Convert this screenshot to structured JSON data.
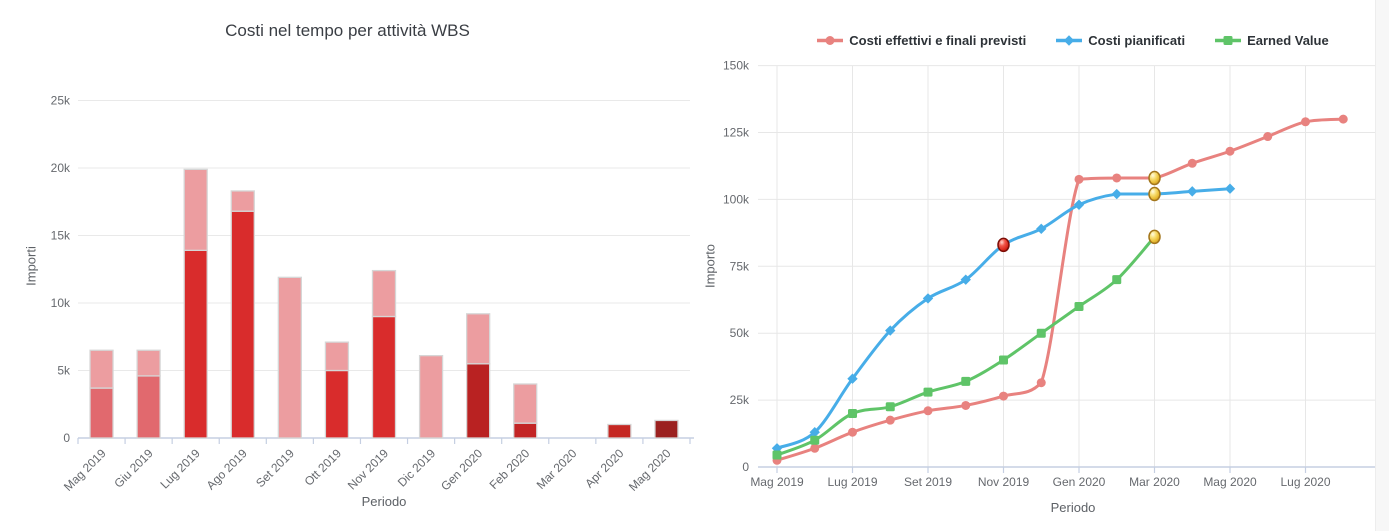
{
  "chart_data": [
    {
      "type": "bar",
      "stacked": true,
      "title": "Costi nel tempo per attività WBS",
      "xlabel": "Periodo",
      "ylabel": "Importi",
      "ylim": [
        0,
        27000
      ],
      "grid": "horizontal",
      "ytick_step": 5000,
      "ytick_labels": [
        "0",
        "5k",
        "10k",
        "15k",
        "20k",
        "25k"
      ],
      "categories": [
        "Mag 2019",
        "Giu 2019",
        "Lug 2019",
        "Ago 2019",
        "Set 2019",
        "Ott 2019",
        "Nov 2019",
        "Dic 2019",
        "Gen 2020",
        "Feb 2020",
        "Mar 2020",
        "Apr 2020",
        "Mag 2020"
      ],
      "bars": [
        {
          "category": "Mag 2019",
          "segments": [
            {
              "value": 3700,
              "color": "#e1696e"
            },
            {
              "value": 2800,
              "color": "#ec9da0"
            }
          ]
        },
        {
          "category": "Giu 2019",
          "segments": [
            {
              "value": 4600,
              "color": "#e1696e"
            },
            {
              "value": 1900,
              "color": "#ec9da0"
            }
          ]
        },
        {
          "category": "Lug 2019",
          "segments": [
            {
              "value": 13900,
              "color": "#d92c2c"
            },
            {
              "value": 6000,
              "color": "#ec9da0"
            }
          ]
        },
        {
          "category": "Ago 2019",
          "segments": [
            {
              "value": 16800,
              "color": "#d92c2c"
            },
            {
              "value": 1500,
              "color": "#ec9da0"
            }
          ]
        },
        {
          "category": "Set 2019",
          "segments": [
            {
              "value": 11900,
              "color": "#ec9da0"
            }
          ]
        },
        {
          "category": "Ott 2019",
          "segments": [
            {
              "value": 5000,
              "color": "#d92c2c"
            },
            {
              "value": 2100,
              "color": "#ec9da0"
            }
          ]
        },
        {
          "category": "Nov 2019",
          "segments": [
            {
              "value": 9000,
              "color": "#d92c2c"
            },
            {
              "value": 3400,
              "color": "#ec9da0"
            }
          ]
        },
        {
          "category": "Dic 2019",
          "segments": [
            {
              "value": 6100,
              "color": "#ec9da0"
            }
          ]
        },
        {
          "category": "Gen 2020",
          "segments": [
            {
              "value": 5500,
              "color": "#b92222"
            },
            {
              "value": 3700,
              "color": "#ec9da0"
            }
          ]
        },
        {
          "category": "Feb 2020",
          "segments": [
            {
              "value": 1100,
              "color": "#c32525"
            },
            {
              "value": 2900,
              "color": "#ec9da0"
            }
          ]
        },
        {
          "category": "Mar 2020",
          "segments": []
        },
        {
          "category": "Apr 2020",
          "segments": [
            {
              "value": 1000,
              "color": "#c52823"
            }
          ]
        },
        {
          "category": "Mag 2020",
          "segments": [
            {
              "value": 1300,
              "color": "#9b2120"
            }
          ]
        }
      ]
    },
    {
      "type": "line",
      "title": "",
      "xlabel": "Periodo",
      "ylabel": "Importo",
      "ylim": [
        0,
        150000
      ],
      "grid": "both",
      "legend_position": "top",
      "ytick_labels": [
        "0",
        "25k",
        "50k",
        "75k",
        "100k",
        "125k",
        "150k"
      ],
      "months": [
        "Mag 2019",
        "Giu 2019",
        "Lug 2019",
        "Ago 2019",
        "Set 2019",
        "Ott 2019",
        "Nov 2019",
        "Dic 2019",
        "Gen 2020",
        "Feb 2020",
        "Mar 2020",
        "Apr 2020",
        "Mag 2020",
        "Giu 2020",
        "Lug 2020",
        "Ago 2020"
      ],
      "xtick_labels": [
        "Mag 2019",
        "Lug 2019",
        "Set 2019",
        "Nov 2019",
        "Gen 2020",
        "Mar 2020",
        "Mag 2020",
        "Lug 2020"
      ],
      "series": [
        {
          "name": "Costi effettivi e finali previsti",
          "color": "#e8827f",
          "marker": "circle",
          "values": [
            2500,
            7000,
            13000,
            17500,
            21000,
            23000,
            26500,
            31500,
            107500,
            108000,
            108000,
            113500,
            118000,
            123500,
            129000,
            130000
          ]
        },
        {
          "name": "Costi pianificati",
          "color": "#47ade8",
          "marker": "diamond",
          "values": [
            7000,
            13000,
            33000,
            51000,
            63000,
            70000,
            83000,
            89000,
            98000,
            102000,
            102000,
            103000,
            104000
          ]
        },
        {
          "name": "Earned Value",
          "color": "#5fc468",
          "marker": "square",
          "values": [
            4500,
            10000,
            20000,
            22500,
            28000,
            32000,
            40000,
            50000,
            60000,
            70000,
            86000
          ]
        }
      ],
      "highlight_markers": [
        {
          "series": "Costi pianificati",
          "x": "Nov 2019",
          "value": 83000,
          "style": "red-ball"
        },
        {
          "series": "Costi effettivi e finali previsti",
          "x": "Mar 2020",
          "value": 108000,
          "style": "gold-ball"
        },
        {
          "series": "Costi pianificati",
          "x": "Mar 2020",
          "value": 102000,
          "style": "gold-ball"
        },
        {
          "series": "Earned Value",
          "x": "Mar 2020",
          "value": 86000,
          "style": "gold-ball"
        }
      ]
    }
  ]
}
